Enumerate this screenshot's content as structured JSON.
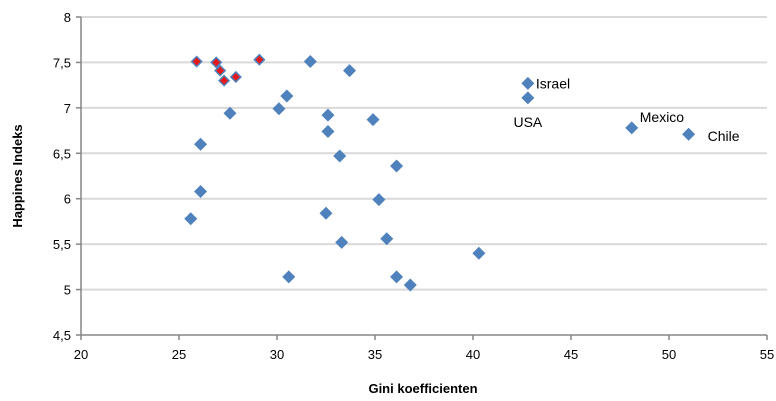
{
  "chart_data": {
    "type": "scatter",
    "xlabel": "Gini koefficienten",
    "ylabel": "Happines Indeks",
    "xlim": [
      20,
      55
    ],
    "ylim": [
      4.5,
      8
    ],
    "x_ticks": [
      "20",
      "25",
      "30",
      "35",
      "40",
      "45",
      "50",
      "55"
    ],
    "y_ticks": [
      "4,5",
      "5",
      "5,5",
      "6",
      "6,5",
      "7",
      "7,5",
      "8"
    ],
    "grid": "horizontal",
    "legend": "none",
    "colors": {
      "default": "#4f81bd",
      "highlight": "#e31a1c",
      "highlight_outline": "#4f81bd",
      "grid": "#d9d9d9"
    },
    "series": [
      {
        "color": "#4f81bd",
        "points": [
          {
            "x": 31.7,
            "y": 7.51
          },
          {
            "x": 33.7,
            "y": 7.41
          },
          {
            "x": 30.5,
            "y": 7.13
          },
          {
            "x": 30.1,
            "y": 6.99
          },
          {
            "x": 27.6,
            "y": 6.94
          },
          {
            "x": 32.6,
            "y": 6.92
          },
          {
            "x": 34.9,
            "y": 6.87
          },
          {
            "x": 32.6,
            "y": 6.74
          },
          {
            "x": 26.1,
            "y": 6.6
          },
          {
            "x": 33.2,
            "y": 6.47
          },
          {
            "x": 36.1,
            "y": 6.36
          },
          {
            "x": 26.1,
            "y": 6.08
          },
          {
            "x": 35.2,
            "y": 5.99
          },
          {
            "x": 32.5,
            "y": 5.84
          },
          {
            "x": 25.6,
            "y": 5.78
          },
          {
            "x": 35.6,
            "y": 5.56
          },
          {
            "x": 33.3,
            "y": 5.52
          },
          {
            "x": 40.3,
            "y": 5.4
          },
          {
            "x": 30.6,
            "y": 5.14
          },
          {
            "x": 36.1,
            "y": 5.14
          },
          {
            "x": 36.8,
            "y": 5.05
          },
          {
            "x": 42.8,
            "y": 7.27,
            "label": "Israel"
          },
          {
            "x": 42.8,
            "y": 7.11,
            "label": "USA"
          },
          {
            "x": 48.1,
            "y": 6.78,
            "label": "Mexico"
          },
          {
            "x": 51.0,
            "y": 6.71,
            "label": "Chile"
          }
        ]
      },
      {
        "color": "#e31a1c",
        "points": [
          {
            "x": 25.9,
            "y": 7.51
          },
          {
            "x": 26.9,
            "y": 7.5
          },
          {
            "x": 29.1,
            "y": 7.53
          },
          {
            "x": 27.1,
            "y": 7.41
          },
          {
            "x": 27.9,
            "y": 7.34
          },
          {
            "x": 27.3,
            "y": 7.3
          }
        ]
      }
    ]
  }
}
